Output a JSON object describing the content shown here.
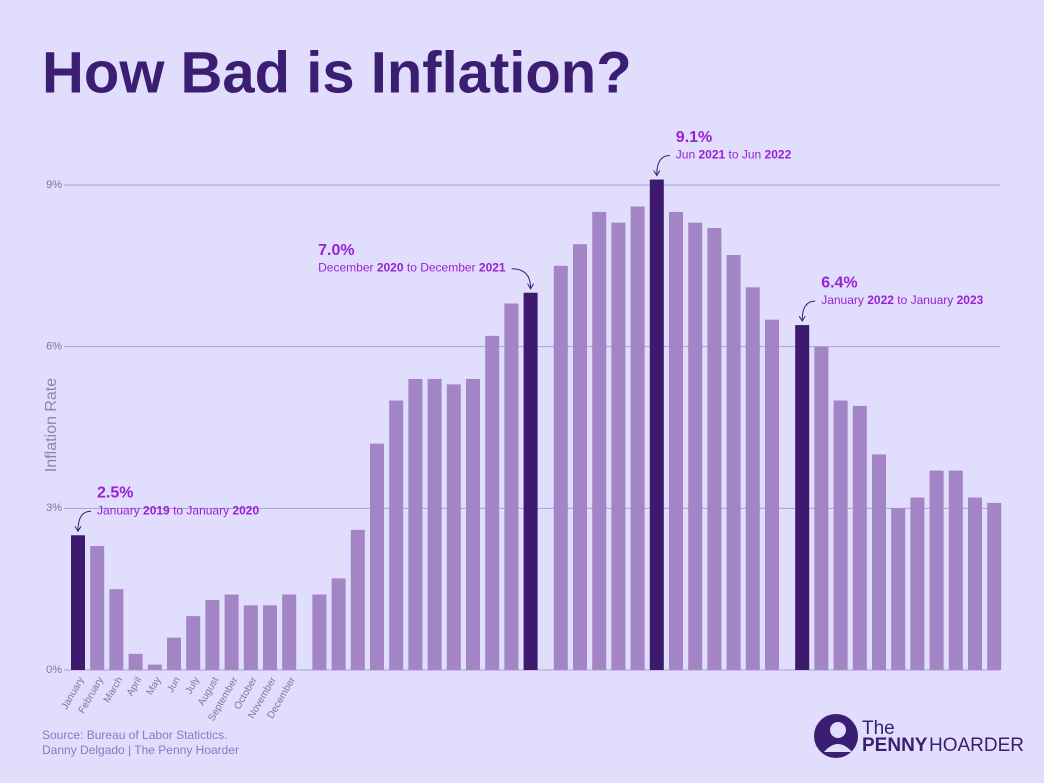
{
  "chart_data": {
    "type": "bar",
    "title": "How Bad is Inflation?",
    "y_label": "Inflation Rate",
    "categories": [
      "January",
      "February",
      "March",
      "April",
      "May",
      "Jun",
      "July",
      "August",
      "September",
      "October",
      "November",
      "December",
      null,
      null,
      null,
      null,
      null,
      null,
      null,
      null,
      null,
      null,
      null,
      null,
      null,
      null,
      null,
      null,
      null,
      null,
      null,
      null,
      null,
      null,
      null,
      null,
      null,
      null,
      null,
      null,
      null,
      null,
      null,
      null,
      null,
      null,
      null
    ],
    "values": [
      2.5,
      2.3,
      1.5,
      0.3,
      0.1,
      0.6,
      1.0,
      1.3,
      1.4,
      1.2,
      1.2,
      1.4,
      1.4,
      1.7,
      2.6,
      4.2,
      5.0,
      5.4,
      5.4,
      5.3,
      5.4,
      6.2,
      6.8,
      7.0,
      7.5,
      7.9,
      8.5,
      8.3,
      8.6,
      9.1,
      8.5,
      8.3,
      8.2,
      7.7,
      7.1,
      6.5,
      6.4,
      6.0,
      5.0,
      4.9,
      4.0,
      3.0,
      3.2,
      3.7,
      3.7,
      3.2,
      3.1
    ],
    "value_labels": [
      "2.5%",
      null,
      null,
      null,
      null,
      null,
      null,
      null,
      null,
      null,
      null,
      null,
      null,
      null,
      null,
      null,
      null,
      null,
      null,
      null,
      null,
      null,
      null,
      "7.0%",
      null,
      null,
      null,
      null,
      null,
      "9.1%",
      null,
      null,
      null,
      null,
      null,
      null,
      "6.4%",
      null,
      null,
      null,
      null,
      null,
      null,
      null,
      null,
      null,
      null
    ],
    "value_notes": [
      "January 2019 to January 2020",
      null,
      null,
      null,
      null,
      null,
      null,
      null,
      null,
      null,
      null,
      null,
      null,
      null,
      null,
      null,
      null,
      null,
      null,
      null,
      null,
      null,
      null,
      "December 2020 to December 2021",
      null,
      null,
      null,
      null,
      null,
      "Jun 2021 to Jun 2022",
      null,
      null,
      null,
      null,
      null,
      null,
      "January 2022 to January 2023",
      null,
      null,
      null,
      null,
      null,
      null,
      null,
      null,
      null,
      null
    ],
    "colors": [
      "#3d1a6e",
      "#a384c4",
      "#a384c4",
      "#a384c4",
      "#a384c4",
      "#a384c4",
      "#a384c4",
      "#a384c4",
      "#a384c4",
      "#a384c4",
      "#a384c4",
      "#a384c4",
      "#a384c4",
      "#a384c4",
      "#a384c4",
      "#a384c4",
      "#a384c4",
      "#a384c4",
      "#a384c4",
      "#a384c4",
      "#a384c4",
      "#a384c4",
      "#a384c4",
      "#3d1a6e",
      "#a384c4",
      "#a384c4",
      "#a384c4",
      "#a384c4",
      "#a384c4",
      "#3d1a6e",
      "#a384c4",
      "#a384c4",
      "#a384c4",
      "#a384c4",
      "#a384c4",
      "#a384c4",
      "#3d1a6e",
      "#a384c4",
      "#a384c4",
      "#a384c4",
      "#a384c4",
      "#a384c4",
      "#a384c4",
      "#a384c4",
      "#a384c4",
      "#a384c4",
      "#a384c4"
    ],
    "ylim": [
      0,
      9.5
    ],
    "yticks": [
      {
        "value": 0,
        "label": "0%"
      },
      {
        "value": 3,
        "label": "3%"
      },
      {
        "value": 6,
        "label": "6%"
      },
      {
        "value": 9,
        "label": "9%"
      }
    ],
    "grid": true,
    "source": [
      "Source: Bureau of Labor Statictics.",
      "Danny Delgado | The Penny Hoarder"
    ],
    "logo": [
      "The",
      "PENNY",
      "HOARDER"
    ]
  }
}
